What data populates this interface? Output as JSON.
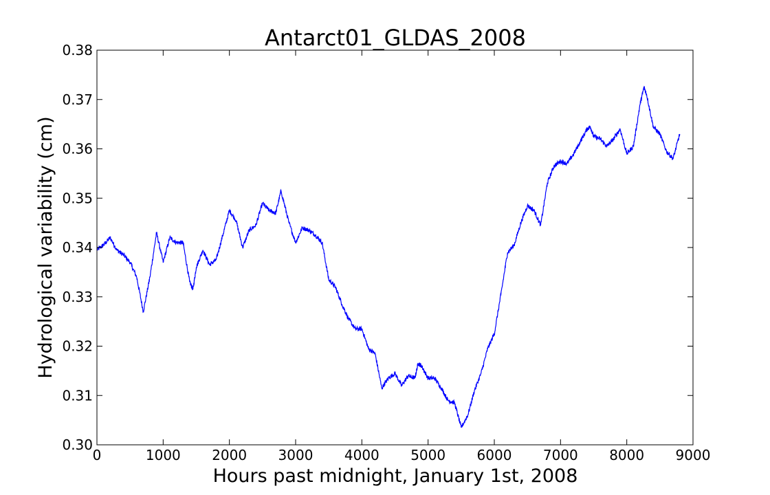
{
  "chart_data": {
    "type": "line",
    "title": "Antarct01_GLDAS_2008",
    "xlabel": "Hours past midnight, January 1st, 2008",
    "ylabel": "Hydrological variability (cm)",
    "xlim": [
      0,
      9000
    ],
    "ylim": [
      0.3,
      0.38
    ],
    "xticks": [
      0,
      1000,
      2000,
      3000,
      4000,
      5000,
      6000,
      7000,
      8000,
      9000
    ],
    "yticks": [
      0.3,
      0.31,
      0.32,
      0.33,
      0.34,
      0.35,
      0.36,
      0.37,
      0.38
    ],
    "xtick_labels": [
      "0",
      "1000",
      "2000",
      "3000",
      "4000",
      "5000",
      "6000",
      "7000",
      "8000",
      "9000"
    ],
    "ytick_labels": [
      "0.30",
      "0.31",
      "0.32",
      "0.33",
      "0.34",
      "0.35",
      "0.36",
      "0.37",
      "0.38"
    ],
    "grid": false,
    "line_color": "#0000ff",
    "series": [
      {
        "x": [
          0,
          100,
          200,
          300,
          400,
          500,
          600,
          700,
          800,
          900,
          1000,
          1100,
          1200,
          1300,
          1400,
          1450,
          1500,
          1600,
          1700,
          1800,
          1900,
          2000,
          2100,
          2200,
          2300,
          2400,
          2500,
          2600,
          2700,
          2780,
          2900,
          3000,
          3100,
          3200,
          3300,
          3400,
          3500,
          3600,
          3700,
          3800,
          3900,
          4000,
          4100,
          4200,
          4300,
          4400,
          4500,
          4600,
          4700,
          4800,
          4850,
          4900,
          5000,
          5100,
          5200,
          5300,
          5400,
          5500,
          5600,
          5700,
          5800,
          5900,
          6000,
          6100,
          6200,
          6300,
          6400,
          6500,
          6600,
          6700,
          6800,
          6900,
          7000,
          7100,
          7200,
          7300,
          7400,
          7450,
          7500,
          7600,
          7700,
          7800,
          7900,
          8000,
          8100,
          8200,
          8260,
          8300,
          8400,
          8500,
          8600,
          8700,
          8800
        ],
        "y": [
          0.3395,
          0.3405,
          0.342,
          0.3395,
          0.3385,
          0.337,
          0.334,
          0.327,
          0.334,
          0.343,
          0.337,
          0.342,
          0.341,
          0.341,
          0.333,
          0.3315,
          0.336,
          0.3395,
          0.3365,
          0.3375,
          0.3425,
          0.3475,
          0.3455,
          0.34,
          0.3435,
          0.3445,
          0.349,
          0.3475,
          0.347,
          0.3515,
          0.345,
          0.341,
          0.344,
          0.3435,
          0.3425,
          0.341,
          0.3335,
          0.332,
          0.3285,
          0.3255,
          0.3235,
          0.3235,
          0.3195,
          0.3185,
          0.3115,
          0.3135,
          0.3145,
          0.312,
          0.314,
          0.3135,
          0.3165,
          0.316,
          0.3135,
          0.3135,
          0.3115,
          0.309,
          0.3085,
          0.3035,
          0.306,
          0.311,
          0.3145,
          0.3195,
          0.3225,
          0.3305,
          0.339,
          0.3405,
          0.345,
          0.3485,
          0.3475,
          0.3445,
          0.353,
          0.3565,
          0.3575,
          0.357,
          0.359,
          0.3615,
          0.364,
          0.3645,
          0.3625,
          0.362,
          0.3605,
          0.362,
          0.364,
          0.359,
          0.3605,
          0.369,
          0.3725,
          0.371,
          0.3645,
          0.363,
          0.3595,
          0.358,
          0.363
        ]
      }
    ]
  }
}
